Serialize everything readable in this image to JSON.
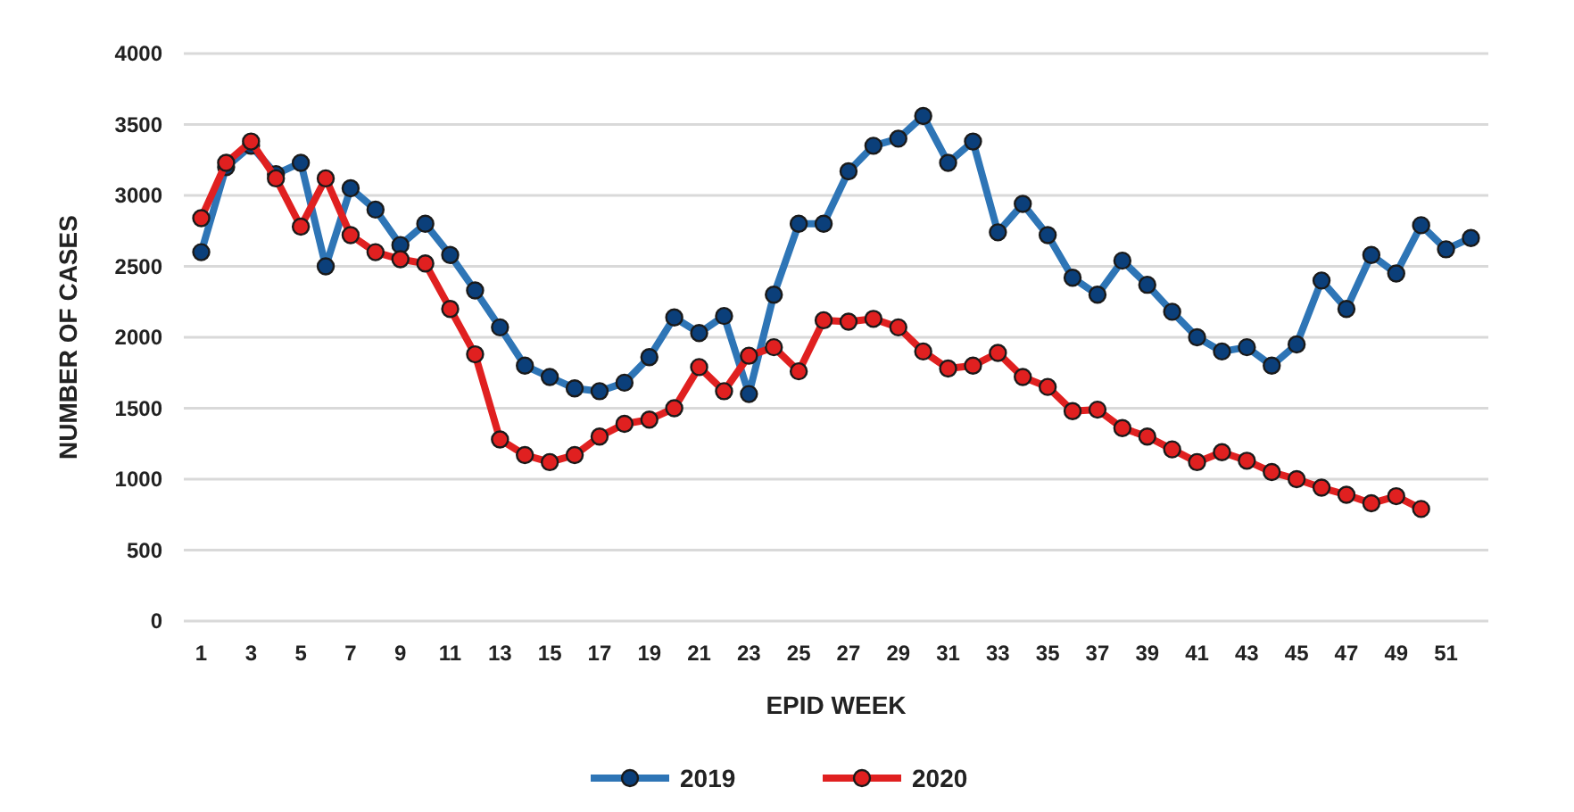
{
  "chart_data": {
    "type": "line",
    "xlabel": "EPID WEEK",
    "ylabel": "NUMBER OF CASES",
    "x": [
      1,
      2,
      3,
      4,
      5,
      6,
      7,
      8,
      9,
      10,
      11,
      12,
      13,
      14,
      15,
      16,
      17,
      18,
      19,
      20,
      21,
      22,
      23,
      24,
      25,
      26,
      27,
      28,
      29,
      30,
      31,
      32,
      33,
      34,
      35,
      36,
      37,
      38,
      39,
      40,
      41,
      42,
      43,
      44,
      45,
      46,
      47,
      48,
      49,
      50,
      51,
      52
    ],
    "xlim": [
      0.3,
      52.7
    ],
    "xticks": [
      1,
      3,
      5,
      7,
      9,
      11,
      13,
      15,
      17,
      19,
      21,
      23,
      25,
      27,
      29,
      31,
      33,
      35,
      37,
      39,
      41,
      43,
      45,
      47,
      49,
      51
    ],
    "series": [
      {
        "name": "2019",
        "color": "#2e75b6",
        "values": [
          2600,
          3200,
          3350,
          3150,
          3230,
          2500,
          3050,
          2900,
          2650,
          2800,
          2580,
          2330,
          2070,
          1800,
          1720,
          1640,
          1620,
          1680,
          1860,
          2140,
          2030,
          2150,
          1600,
          2300,
          2800,
          2800,
          3170,
          3350,
          3400,
          3560,
          3230,
          3380,
          2740,
          2940,
          2720,
          2420,
          2300,
          2540,
          2370,
          2180,
          2000,
          1900,
          1930,
          1800,
          1950,
          2400,
          2200,
          2580,
          2450,
          2790,
          2620,
          2700
        ]
      },
      {
        "name": "2020",
        "color": "#e02020",
        "values": [
          2840,
          3230,
          3380,
          3120,
          2780,
          3120,
          2720,
          2600,
          2550,
          2520,
          2200,
          1880,
          1280,
          1170,
          1120,
          1170,
          1300,
          1390,
          1420,
          1500,
          1790,
          1620,
          1870,
          1930,
          1760,
          2120,
          2110,
          2130,
          2070,
          1900,
          1780,
          1800,
          1890,
          1720,
          1650,
          1480,
          1490,
          1360,
          1300,
          1210,
          1120,
          1190,
          1130,
          1050,
          1000,
          940,
          890,
          830,
          880,
          790,
          null,
          null
        ]
      }
    ],
    "ylim": [
      0,
      4000
    ],
    "yticks": [
      0,
      500,
      1000,
      1500,
      2000,
      2500,
      3000,
      3500,
      4000
    ],
    "grid": "y",
    "legend": "bottom",
    "marker": "circle",
    "line_style": "solid"
  }
}
